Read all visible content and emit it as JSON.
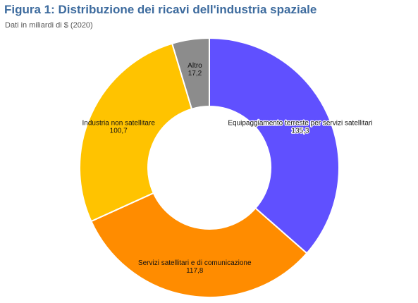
{
  "title": "Figura 1: Distribuzione dei ricavi dell'industria spaziale",
  "subtitle": "Dati in miliardi di $ (2020)",
  "chart_data": {
    "type": "pie",
    "variant": "donut",
    "title": "Figura 1: Distribuzione dei ricavi dell'industria spaziale",
    "subtitle": "Dati in miliardi di $ (2020)",
    "start_angle_deg": 0,
    "direction": "clockwise",
    "legend": "none",
    "slices": [
      {
        "label": "Equipaggiamento terreste per servizi satellitari",
        "value": 135.3,
        "value_label": "135,3",
        "color": "#6050ff",
        "label_halo": true
      },
      {
        "label": "Servizi satellitari e di comunicazione",
        "value": 117.8,
        "value_label": "117,8",
        "color": "#ff8c00",
        "label_halo": false
      },
      {
        "label": "Industria non satellitare",
        "value": 100.7,
        "value_label": "100,7",
        "color": "#ffc300",
        "label_halo": false
      },
      {
        "label": "Altro",
        "value": 17.2,
        "value_label": "17,2",
        "color": "#8c8c8c",
        "label_halo": false
      }
    ]
  }
}
